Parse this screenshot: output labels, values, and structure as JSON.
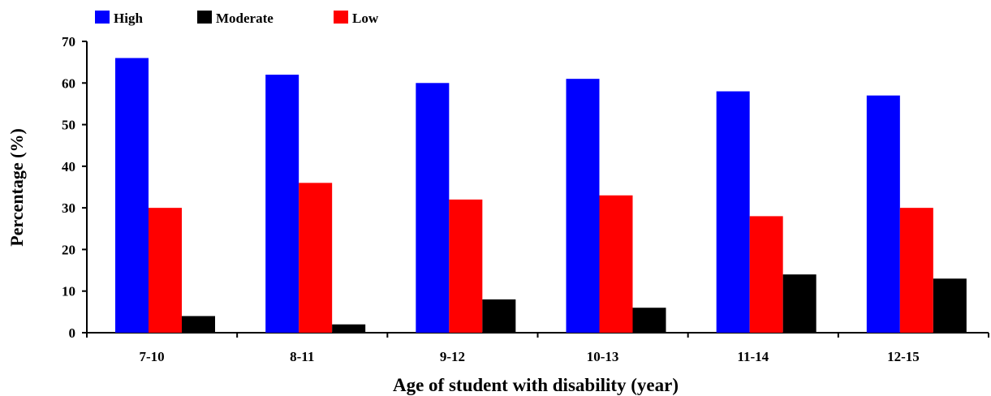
{
  "chart_data": {
    "type": "bar",
    "title": "",
    "xlabel": "Age of student with disability (year)",
    "ylabel": "Percentage (%)",
    "ylim": [
      0,
      70
    ],
    "yticks": [
      0,
      10,
      20,
      30,
      40,
      50,
      60,
      70
    ],
    "categories": [
      "7-10",
      "8-11",
      "9-12",
      "10-13",
      "11-14",
      "12-15"
    ],
    "series": [
      {
        "name": "High",
        "color": "#0000ff",
        "values": [
          66,
          62,
          60,
          61,
          58,
          57
        ]
      },
      {
        "name": "Low",
        "color": "#ff0000",
        "values": [
          30,
          36,
          32,
          33,
          28,
          30
        ]
      },
      {
        "name": "Moderate",
        "color": "#000000",
        "values": [
          4,
          2,
          8,
          6,
          14,
          13
        ]
      }
    ],
    "legend": {
      "placement": "top-left",
      "items": [
        {
          "name": "High",
          "color": "#0000ff"
        },
        {
          "name": "Moderate",
          "color": "#000000"
        },
        {
          "name": "Low",
          "color": "#ff0000"
        }
      ]
    },
    "grid": false
  }
}
